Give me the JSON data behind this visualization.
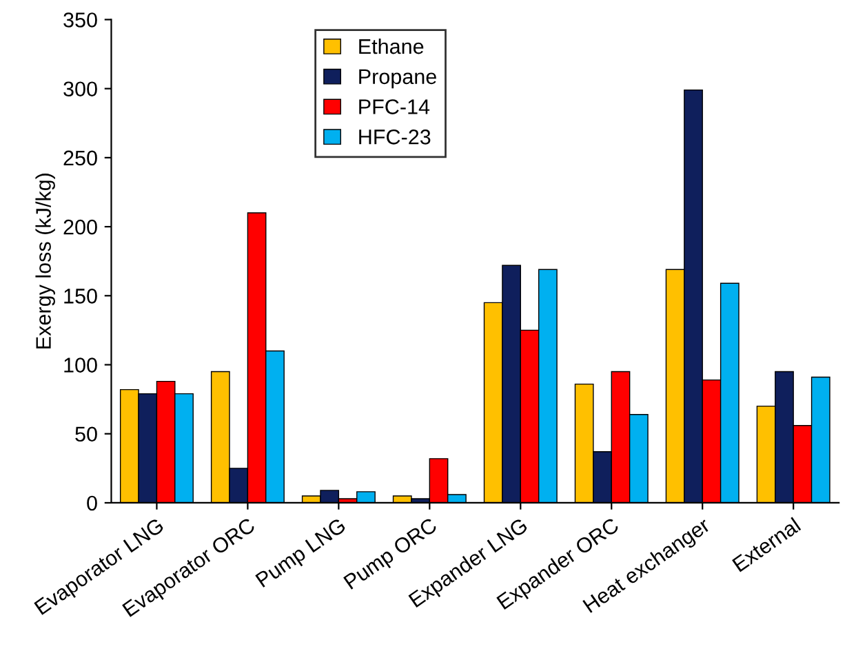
{
  "chart_data": {
    "type": "bar",
    "ylabel": "Exergy loss (kJ/kg)",
    "categories": [
      "Evaporator LNG",
      "Evaporator ORC",
      "Pump LNG",
      "Pump ORC",
      "Expander LNG",
      "Expander ORC",
      "Heat exchanger",
      "External"
    ],
    "series": [
      {
        "name": "Ethane",
        "color": "#ffc000",
        "values": [
          82,
          95,
          5,
          5,
          145,
          86,
          169,
          70
        ]
      },
      {
        "name": "Propane",
        "color": "#0f1f5c",
        "values": [
          79,
          25,
          9,
          3,
          172,
          37,
          299,
          95
        ]
      },
      {
        "name": "PFC-14",
        "color": "#ff0000",
        "values": [
          88,
          210,
          3,
          32,
          125,
          95,
          89,
          56
        ]
      },
      {
        "name": "HFC-23",
        "color": "#00b0f0",
        "values": [
          79,
          110,
          8,
          6,
          169,
          64,
          159,
          91
        ]
      }
    ],
    "ylim": [
      0,
      350
    ],
    "yticks": [
      0,
      50,
      100,
      150,
      200,
      250,
      300,
      350
    ],
    "grid": false,
    "legend": "top"
  }
}
